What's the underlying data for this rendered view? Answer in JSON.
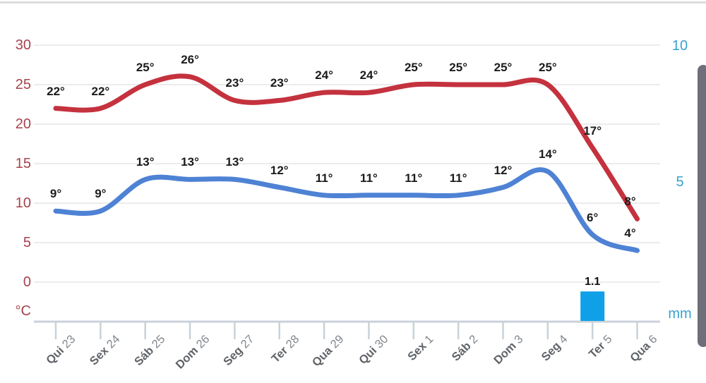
{
  "chart_data": {
    "type": "line",
    "categories": [
      {
        "day": "Qui",
        "date": "23"
      },
      {
        "day": "Sex",
        "date": "24"
      },
      {
        "day": "Sáb",
        "date": "25"
      },
      {
        "day": "Dom",
        "date": "26"
      },
      {
        "day": "Seg",
        "date": "27"
      },
      {
        "day": "Ter",
        "date": "28"
      },
      {
        "day": "Qua",
        "date": "29"
      },
      {
        "day": "Qui",
        "date": "30"
      },
      {
        "day": "Sex",
        "date": "1"
      },
      {
        "day": "Sáb",
        "date": "2"
      },
      {
        "day": "Dom",
        "date": "3"
      },
      {
        "day": "Seg",
        "date": "4"
      },
      {
        "day": "Ter",
        "date": "5"
      },
      {
        "day": "Qua",
        "date": "6"
      }
    ],
    "series": [
      {
        "name": "temp-max",
        "color": "#c4323e",
        "values": [
          22,
          22,
          25,
          26,
          23,
          23,
          24,
          24,
          25,
          25,
          25,
          25,
          17,
          8
        ],
        "point_labels": [
          "22°",
          "22°",
          "25°",
          "26°",
          "23°",
          "23°",
          "24°",
          "24°",
          "25°",
          "25°",
          "25°",
          "25°",
          "17°",
          "8°"
        ]
      },
      {
        "name": "temp-min",
        "color": "#4e82d4",
        "values": [
          9,
          9,
          13,
          13,
          13,
          12,
          11,
          11,
          11,
          11,
          12,
          14,
          6,
          4
        ],
        "point_labels": [
          "9°",
          "9°",
          "13°",
          "13°",
          "13°",
          "12°",
          "11°",
          "11°",
          "11°",
          "11°",
          "12°",
          "14°",
          "6°",
          "4°"
        ]
      }
    ],
    "bars": {
      "name": "precipitation",
      "color": "#0fa0e8",
      "points": [
        {
          "category_index": 12,
          "value": 1.1,
          "label": "1.1"
        }
      ]
    },
    "left_axis": {
      "unit": "°C",
      "ticks": [
        30,
        25,
        20,
        15,
        10,
        5,
        0
      ],
      "range": [
        0,
        30
      ],
      "color": "#a6424c"
    },
    "right_axis": {
      "unit": "mm",
      "ticks": [
        10,
        5
      ],
      "range": [
        0,
        10
      ],
      "color": "#38a2ce"
    },
    "grid": true,
    "legend": "none",
    "grid_color": "#ececee",
    "axisline_color": "#c9d2d9"
  }
}
